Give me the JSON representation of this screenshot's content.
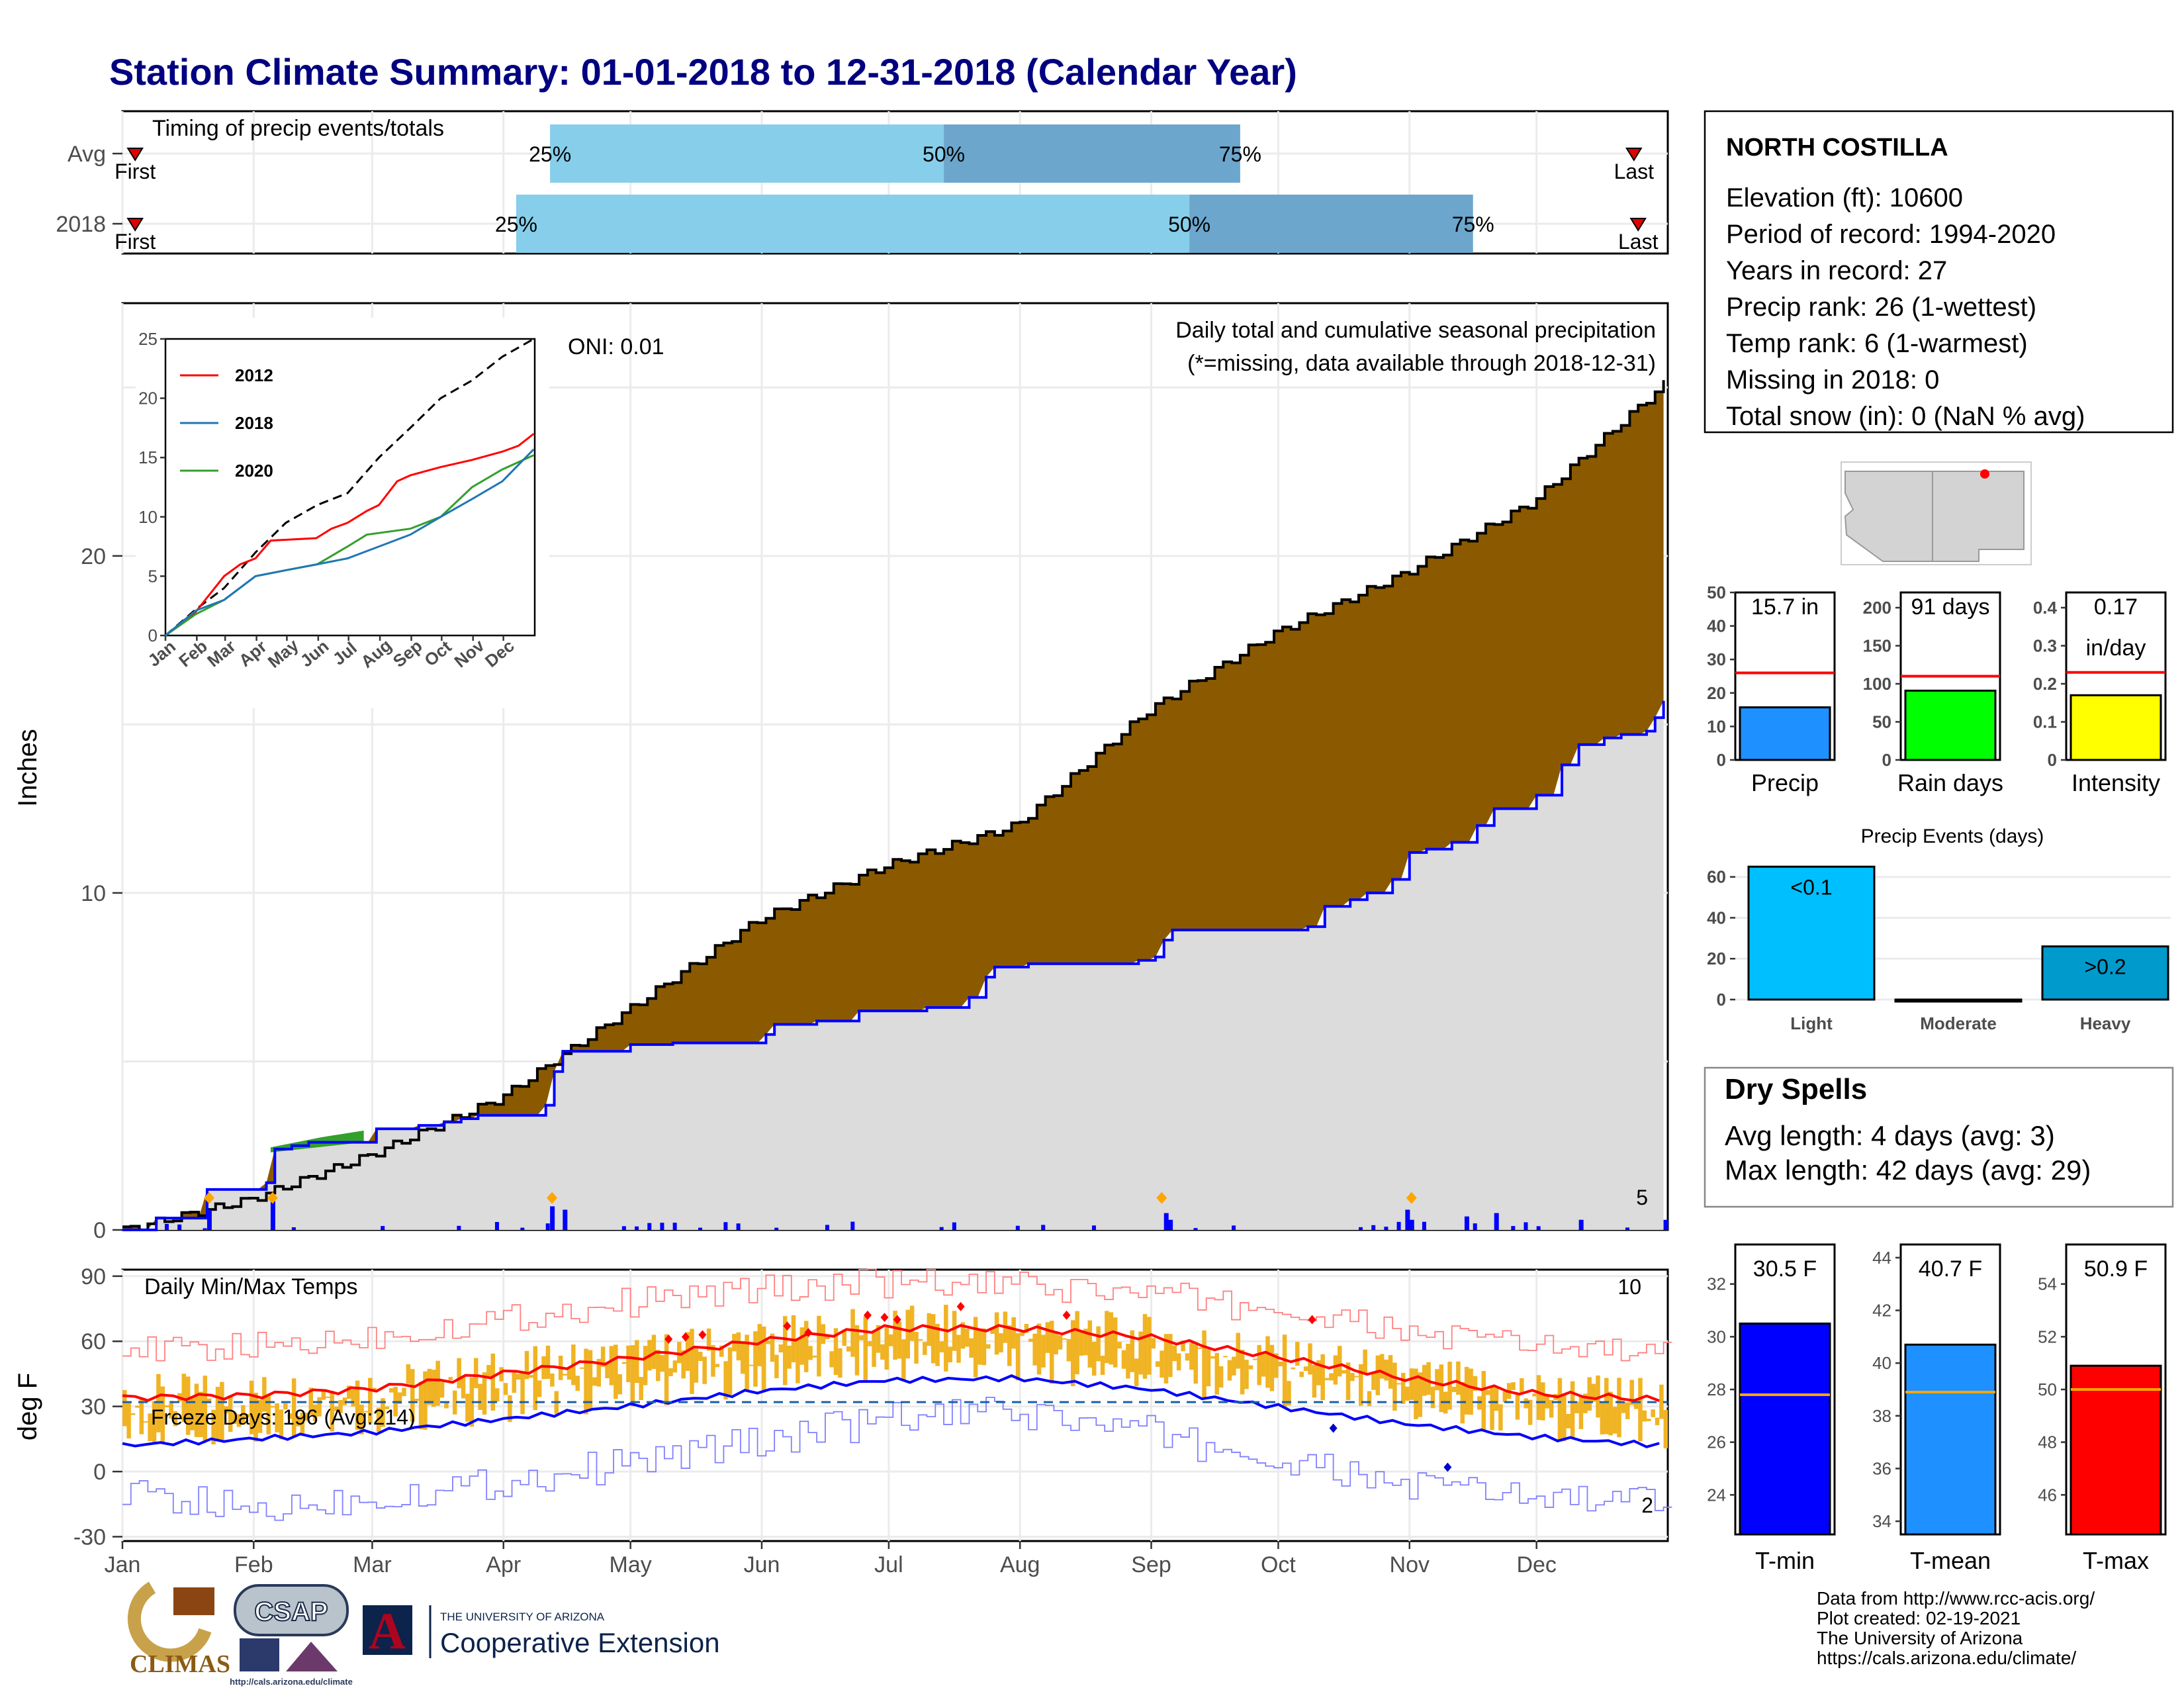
{
  "title": "Station Climate Summary: 01-01-2018 to 12-31-2018 (Calendar Year)",
  "colors": {
    "title": "#000080",
    "cumulative_avg_fill": "#8B5A00",
    "season_fill": "#dcdcdc",
    "series_2018": "#0000ff",
    "daily_bar": "#0000ff",
    "event_marker": "#FFA500",
    "timing_light": "#87CEEB",
    "timing_dark": "#6CA6CD",
    "tmax_line": "#ff0000",
    "tmin_line": "#0000ff",
    "temp_range_bar": "#F0B323",
    "precip_bar": "#1E90FF",
    "raindays_bar": "#00FF00",
    "intensity_bar": "#FFFF00",
    "events_light": "#00BFFF",
    "events_heavy": "#009ACD",
    "tmin_bar": "#0000FF",
    "tmean_bar": "#1E90FF",
    "tmax_bar": "#FF0000",
    "dry_spells_text": "#A52A2A"
  },
  "months": [
    "Jan",
    "Feb",
    "Mar",
    "Apr",
    "May",
    "Jun",
    "Jul",
    "Aug",
    "Sep",
    "Oct",
    "Nov",
    "Dec"
  ],
  "timing": {
    "title": "Timing of precip events/totals",
    "rows": [
      {
        "label": "Avg",
        "first": "First",
        "last": "Last",
        "q25_doy": 102,
        "q50_doy": 195,
        "q75_doy": 265,
        "last_doy": 358
      },
      {
        "label": "2018",
        "first": "First",
        "last": "Last",
        "q25_doy": 94,
        "q50_doy": 253,
        "q75_doy": 320,
        "last_doy": 359
      }
    ],
    "pct_labels": [
      "25%",
      "50%",
      "75%"
    ]
  },
  "precip_panel": {
    "ylabel": "Inches",
    "yticks": [
      0,
      10,
      20
    ],
    "ylim": [
      0,
      27.5
    ],
    "title": "Daily total and cumulative seasonal precipitation",
    "subtitle": "(*=missing, data available through 2018-12-31)",
    "oni": "ONI: 0.01",
    "corner_count": "5",
    "avg_cumulative": [
      [
        1,
        0
      ],
      [
        31,
        0.9
      ],
      [
        59,
        2.2
      ],
      [
        90,
        3.9
      ],
      [
        120,
        6.5
      ],
      [
        151,
        9.2
      ],
      [
        181,
        10.8
      ],
      [
        212,
        12.0
      ],
      [
        243,
        15.4
      ],
      [
        273,
        17.7
      ],
      [
        304,
        19.5
      ],
      [
        334,
        21.6
      ],
      [
        365,
        25.1
      ]
    ],
    "cumulative_2018": [
      [
        1,
        0
      ],
      [
        8,
        0.35
      ],
      [
        20,
        0.6
      ],
      [
        21,
        1.2
      ],
      [
        35,
        1.4
      ],
      [
        36,
        2.4
      ],
      [
        40,
        2.5
      ],
      [
        45,
        2.6
      ],
      [
        60,
        3.0
      ],
      [
        70,
        3.1
      ],
      [
        77,
        3.2
      ],
      [
        80,
        3.3
      ],
      [
        85,
        3.4
      ],
      [
        95,
        3.4
      ],
      [
        100,
        3.7
      ],
      [
        102,
        4.4
      ],
      [
        103,
        4.7
      ],
      [
        104,
        4.7
      ],
      [
        105,
        5.3
      ],
      [
        120,
        5.5
      ],
      [
        130,
        5.55
      ],
      [
        153,
        5.8
      ],
      [
        155,
        6.1
      ],
      [
        165,
        6.2
      ],
      [
        175,
        6.5
      ],
      [
        190,
        6.6
      ],
      [
        200,
        6.9
      ],
      [
        205,
        7.5
      ],
      [
        206,
        7.8
      ],
      [
        215,
        7.9
      ],
      [
        240,
        8.0
      ],
      [
        245,
        8.1
      ],
      [
        246,
        8.6
      ],
      [
        249,
        8.9
      ],
      [
        255,
        8.9
      ],
      [
        280,
        9.0
      ],
      [
        285,
        9.6
      ],
      [
        290,
        9.8
      ],
      [
        295,
        10.0
      ],
      [
        300,
        10.4
      ],
      [
        304,
        11.0
      ],
      [
        305,
        11.2
      ],
      [
        308,
        11.3
      ],
      [
        315,
        11.5
      ],
      [
        320,
        12.0
      ],
      [
        325,
        12.5
      ],
      [
        330,
        12.5
      ],
      [
        335,
        12.9
      ],
      [
        340,
        13.8
      ],
      [
        345,
        14.4
      ],
      [
        350,
        14.6
      ],
      [
        355,
        14.7
      ],
      [
        360,
        14.8
      ],
      [
        363,
        15.2
      ],
      [
        365,
        15.7
      ]
    ],
    "daily_events_2018": [
      [
        21,
        0.6
      ],
      [
        36,
        0.9
      ],
      [
        102,
        0.7
      ],
      [
        105,
        0.6
      ],
      [
        247,
        0.5
      ],
      [
        248,
        0.3
      ],
      [
        304,
        0.6
      ],
      [
        305,
        0.3
      ],
      [
        318,
        0.4
      ],
      [
        325,
        0.5
      ],
      [
        345,
        0.3
      ],
      [
        365,
        0.3
      ]
    ],
    "markers_doy": [
      21,
      36,
      102,
      246,
      305
    ]
  },
  "inset": {
    "yticks": [
      0,
      5,
      10,
      15,
      20,
      25
    ],
    "xticks": [
      "Jan",
      "Feb",
      "Mar",
      "Apr",
      "May",
      "Jun",
      "Jul",
      "Aug",
      "Sep",
      "Oct",
      "Nov",
      "Dec"
    ],
    "legend": [
      {
        "name": "2012",
        "color": "#ff0000"
      },
      {
        "name": "2018",
        "color": "#1f77b4"
      },
      {
        "name": "2020",
        "color": "#33a02c"
      }
    ],
    "avg_series": [
      [
        1,
        0
      ],
      [
        31,
        2.2
      ],
      [
        59,
        4.0
      ],
      [
        90,
        7.0
      ],
      [
        120,
        9.5
      ],
      [
        151,
        11.0
      ],
      [
        181,
        12.0
      ],
      [
        212,
        15.0
      ],
      [
        243,
        17.5
      ],
      [
        273,
        20.0
      ],
      [
        304,
        21.5
      ],
      [
        334,
        23.5
      ],
      [
        365,
        25.0
      ]
    ],
    "series_2012": [
      [
        1,
        0
      ],
      [
        31,
        2.0
      ],
      [
        59,
        5.0
      ],
      [
        75,
        6.0
      ],
      [
        90,
        6.5
      ],
      [
        105,
        8.0
      ],
      [
        150,
        8.2
      ],
      [
        165,
        9.0
      ],
      [
        181,
        9.5
      ],
      [
        200,
        10.5
      ],
      [
        212,
        11.0
      ],
      [
        230,
        13.0
      ],
      [
        243,
        13.5
      ],
      [
        273,
        14.2
      ],
      [
        304,
        14.8
      ],
      [
        334,
        15.5
      ],
      [
        350,
        16.0
      ],
      [
        365,
        17.0
      ]
    ],
    "series_2018": [
      [
        1,
        0
      ],
      [
        31,
        2.1
      ],
      [
        59,
        3.0
      ],
      [
        90,
        5.0
      ],
      [
        120,
        5.5
      ],
      [
        151,
        6.0
      ],
      [
        181,
        6.5
      ],
      [
        212,
        7.5
      ],
      [
        243,
        8.5
      ],
      [
        273,
        10.0
      ],
      [
        304,
        11.5
      ],
      [
        334,
        13.0
      ],
      [
        365,
        15.7
      ]
    ],
    "series_2020": [
      [
        1,
        0
      ],
      [
        31,
        1.8
      ],
      [
        59,
        3.0
      ],
      [
        90,
        5.0
      ],
      [
        120,
        5.5
      ],
      [
        151,
        6.0
      ],
      [
        181,
        7.5
      ],
      [
        200,
        8.5
      ],
      [
        243,
        9.0
      ],
      [
        273,
        10.0
      ],
      [
        304,
        12.5
      ],
      [
        334,
        14.0
      ],
      [
        365,
        15.2
      ]
    ]
  },
  "temp_panel": {
    "ylabel": "deg F",
    "title": "Daily Min/Max Temps",
    "freeze_text": "Freeze Days: 196 (Avg:214)",
    "count_top": "10",
    "count_bottom": "2",
    "yticks": [
      -30,
      0,
      30,
      60,
      90
    ],
    "ylim": [
      -32,
      93
    ],
    "avg_tmax": [
      [
        1,
        34
      ],
      [
        31,
        35
      ],
      [
        59,
        38
      ],
      [
        90,
        45
      ],
      [
        120,
        52
      ],
      [
        151,
        60
      ],
      [
        181,
        66
      ],
      [
        212,
        66
      ],
      [
        243,
        62
      ],
      [
        273,
        53
      ],
      [
        304,
        43
      ],
      [
        334,
        36
      ],
      [
        365,
        33
      ]
    ],
    "avg_tmin": [
      [
        1,
        12
      ],
      [
        31,
        15
      ],
      [
        59,
        18
      ],
      [
        90,
        24
      ],
      [
        120,
        30
      ],
      [
        151,
        37
      ],
      [
        181,
        42
      ],
      [
        212,
        43
      ],
      [
        243,
        38
      ],
      [
        273,
        30
      ],
      [
        304,
        22
      ],
      [
        334,
        16
      ],
      [
        365,
        12
      ]
    ],
    "record_high": [
      [
        1,
        55
      ],
      [
        31,
        57
      ],
      [
        59,
        62
      ],
      [
        90,
        70
      ],
      [
        120,
        78
      ],
      [
        151,
        84
      ],
      [
        181,
        87
      ],
      [
        212,
        85
      ],
      [
        243,
        82
      ],
      [
        273,
        74
      ],
      [
        304,
        64
      ],
      [
        334,
        58
      ],
      [
        365,
        54
      ]
    ],
    "record_low": [
      [
        1,
        -10
      ],
      [
        31,
        -18
      ],
      [
        59,
        -12
      ],
      [
        90,
        -5
      ],
      [
        120,
        4
      ],
      [
        151,
        14
      ],
      [
        181,
        24
      ],
      [
        212,
        27
      ],
      [
        243,
        18
      ],
      [
        273,
        4
      ],
      [
        304,
        -6
      ],
      [
        334,
        -12
      ],
      [
        365,
        -15
      ]
    ],
    "freeze_line": 32
  },
  "station": {
    "name": "NORTH COSTILLA",
    "lines": [
      "Elevation (ft): 10600",
      "Period of record: 1994-2020",
      "Years in record: 27",
      "Precip rank: 26 (1-wettest)",
      "Temp rank: 6 (1-warmest)",
      "Missing in 2018: 0",
      "Total snow (in): 0 (NaN % avg)"
    ]
  },
  "mini_bars": [
    {
      "label": "Precip",
      "value_text": "15.7 in",
      "value": 15.7,
      "avg": 26,
      "yticks": [
        0,
        10,
        20,
        30,
        40,
        50
      ],
      "ymax": 50,
      "color": "#1E90FF"
    },
    {
      "label": "Rain days",
      "value_text": "91 days",
      "value": 91,
      "avg": 110,
      "yticks": [
        0,
        50,
        100,
        150,
        200
      ],
      "ymax": 220,
      "color": "#00FF00"
    },
    {
      "label": "Intensity",
      "value_text": "0.17",
      "value_text2": "in/day",
      "value": 0.17,
      "avg": 0.23,
      "yticks": [
        0.0,
        0.1,
        0.2,
        0.3,
        0.4
      ],
      "ymax": 0.44,
      "color": "#FFFF00"
    }
  ],
  "precip_events": {
    "title": "Precip Events (days)",
    "categories": [
      "Light",
      "Moderate",
      "Heavy"
    ],
    "values": [
      65,
      0,
      26
    ],
    "bar_labels": [
      "<0.1",
      "",
      ">0.2"
    ],
    "yticks": [
      0,
      20,
      40,
      60
    ],
    "ymax": 68
  },
  "dry_spells": {
    "title": "Dry Spells",
    "avg_line": "Avg length: 4 days (avg: 3)",
    "max_line": "Max length: 42 days (avg: 29)"
  },
  "temp_bars": [
    {
      "label": "T-min",
      "value_text": "30.5 F",
      "value": 30.5,
      "avg": 27.8,
      "yticks": [
        24,
        26,
        28,
        30,
        32
      ],
      "ylim": [
        22.5,
        33.5
      ],
      "color": "#0000FF"
    },
    {
      "label": "T-mean",
      "value_text": "40.7 F",
      "value": 40.7,
      "avg": 38.9,
      "yticks": [
        34,
        36,
        38,
        40,
        42,
        44
      ],
      "ylim": [
        33.5,
        44.5
      ],
      "color": "#1E90FF"
    },
    {
      "label": "T-max",
      "value_text": "50.9 F",
      "value": 50.9,
      "avg": 50.0,
      "yticks": [
        46,
        48,
        50,
        52,
        54
      ],
      "ylim": [
        44.5,
        55.5
      ],
      "color": "#FF0000"
    }
  ],
  "footer": {
    "credits": [
      "Data from http://www.rcc-acis.org/",
      "Plot created: 02-19-2021",
      "The University of Arizona",
      "https://cals.arizona.edu/climate/"
    ],
    "logos": {
      "climas": "CLIMAS",
      "csap": "CSAP",
      "csap_url": "http://cals.arizona.edu/climate",
      "ua_small": "THE UNIVERSITY OF ARIZONA",
      "ua_big": "Cooperative Extension",
      "ua_mark": "A"
    }
  },
  "chart_data": [
    {
      "type": "area",
      "title": "Daily total and cumulative seasonal precipitation",
      "ylabel": "Inches",
      "ylim": [
        0,
        27.5
      ],
      "series": [
        {
          "name": "2018",
          "total": 15.7
        }
      ]
    },
    {
      "type": "bar",
      "title": "Precip Events (days)",
      "categories": [
        "Light",
        "Moderate",
        "Heavy"
      ],
      "values": [
        65,
        0,
        26
      ]
    },
    {
      "type": "bar",
      "categories": [
        "Precip",
        "Rain days",
        "Intensity"
      ],
      "values": [
        15.7,
        91,
        0.17
      ]
    },
    {
      "type": "bar",
      "categories": [
        "T-min",
        "T-mean",
        "T-max"
      ],
      "values": [
        30.5,
        40.7,
        50.9
      ]
    }
  ]
}
